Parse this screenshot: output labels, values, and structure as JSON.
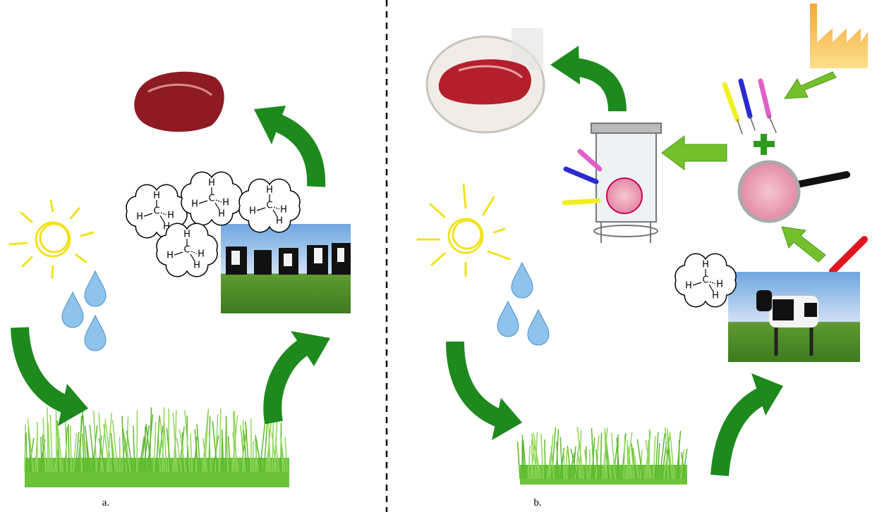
{
  "panels": [
    {
      "label": "a."
    },
    {
      "label": "b."
    }
  ],
  "molecule": {
    "carbon": "C",
    "hydrogen": "H"
  }
}
